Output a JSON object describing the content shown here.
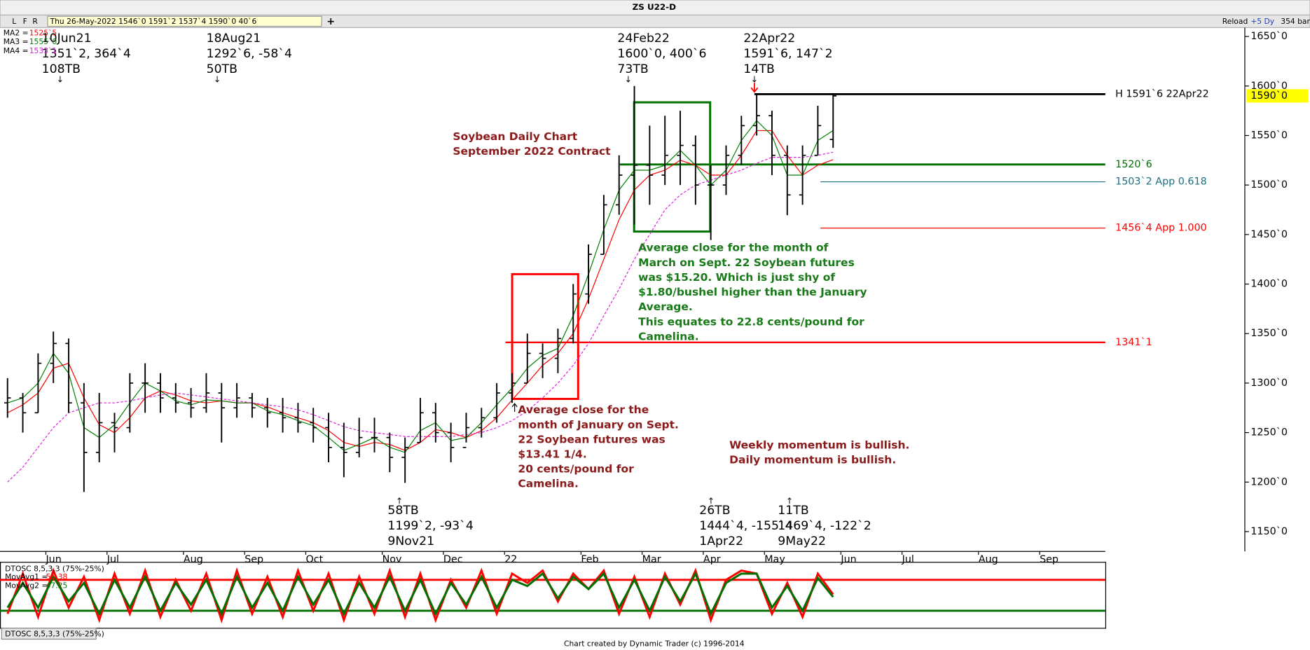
{
  "window": {
    "toolbar": {
      "letters": [
        "L",
        "F",
        "R"
      ],
      "quote": "Thu 26-May-2022   1546`0   1591`2   1537`4   1590`0   40`6",
      "add": "+",
      "buttons": [
        "Reload",
        "+5 Dy"
      ],
      "bars": "354 bars"
    },
    "footer": "Chart created by Dynamic Trader  (c) 1996-2014"
  },
  "chart_data": [
    {
      "type": "ohlc",
      "title": "ZS U22-D",
      "categories": [
        null,
        null,
        null,
        "Jun",
        null,
        null,
        null,
        "Jul",
        null,
        null,
        null,
        null,
        "Aug",
        null,
        null,
        null,
        "Sep",
        null,
        null,
        null,
        "Oct",
        null,
        null,
        null,
        null,
        "Nov",
        null,
        null,
        null,
        "Dec",
        null,
        null,
        null,
        "22",
        null,
        null,
        null,
        null,
        "Feb",
        null,
        null,
        null,
        "Mar",
        null,
        null,
        null,
        "Apr",
        null,
        null,
        null,
        "May",
        null,
        null,
        null,
        null,
        "Jun",
        null,
        null,
        null,
        "Jul",
        null,
        null,
        null,
        null,
        "Aug",
        null,
        null,
        null,
        "Sep",
        null,
        null,
        null
      ],
      "open": [
        1280,
        1285,
        1270,
        1320,
        1340,
        1280,
        1230,
        1260,
        1255,
        1300,
        1300,
        1285,
        1280,
        1275,
        1290,
        1275,
        1285,
        1275,
        1270,
        1265,
        1260,
        1255,
        1235,
        1230,
        1245,
        1245,
        1225,
        1240,
        1270,
        1250,
        1235,
        1255,
        1265,
        1290,
        1300,
        1330,
        1325,
        1345,
        1390,
        1430,
        1480,
        1510,
        1520,
        1510,
        1530,
        1540,
        1500,
        1500,
        1530,
        1560,
        1570,
        1530,
        1490,
        1530,
        1546,
        null,
        null,
        null,
        null,
        null,
        null,
        null,
        null,
        null,
        null,
        null,
        null,
        null,
        null,
        null,
        null,
        null
      ],
      "high": [
        1305,
        1290,
        1330,
        1352,
        1345,
        1300,
        1290,
        1270,
        1310,
        1320,
        1310,
        1300,
        1295,
        1310,
        1300,
        1300,
        1290,
        1285,
        1285,
        1280,
        1275,
        1270,
        1260,
        1265,
        1265,
        1250,
        1245,
        1285,
        1280,
        1260,
        1270,
        1275,
        1300,
        1310,
        1350,
        1340,
        1355,
        1400,
        1440,
        1490,
        1530,
        1600,
        1560,
        1570,
        1575,
        1550,
        1520,
        1540,
        1570,
        1591.75,
        1575,
        1540,
        1540,
        1580,
        1591.25,
        null,
        null,
        null,
        null,
        null,
        null,
        null,
        null,
        null,
        null,
        null,
        null,
        null,
        null,
        null,
        null,
        null
      ],
      "low": [
        1265,
        1250,
        1270,
        1300,
        1270,
        1190,
        1220,
        1230,
        1250,
        1270,
        1270,
        1270,
        1265,
        1270,
        1240,
        1265,
        1265,
        1255,
        1250,
        1250,
        1240,
        1220,
        1205,
        1225,
        1230,
        1210,
        1199.25,
        1240,
        1240,
        1220,
        1240,
        1245,
        1260,
        1280,
        1300,
        1305,
        1310,
        1340,
        1380,
        1430,
        1470,
        1460,
        1480,
        1500,
        1500,
        1480,
        1444.5,
        1490,
        1520,
        1550,
        1510,
        1469.5,
        1480,
        1530,
        1537.5,
        null,
        null,
        null,
        null,
        null,
        null,
        null,
        null,
        null,
        null,
        null,
        null,
        null,
        null,
        null,
        null,
        null
      ],
      "close": [
        1285,
        1270,
        1320,
        1340,
        1280,
        1230,
        1260,
        1255,
        1300,
        1300,
        1285,
        1280,
        1275,
        1290,
        1275,
        1285,
        1275,
        1270,
        1265,
        1260,
        1255,
        1235,
        1230,
        1245,
        1245,
        1225,
        1235,
        1270,
        1250,
        1235,
        1255,
        1265,
        1290,
        1300,
        1330,
        1325,
        1345,
        1390,
        1430,
        1480,
        1510,
        1520,
        1510,
        1530,
        1540,
        1500,
        1500,
        1530,
        1560,
        1570,
        1530,
        1490,
        1530,
        1560,
        1590,
        null,
        null,
        null,
        null,
        null,
        null,
        null,
        null,
        null,
        null,
        null,
        null,
        null,
        null,
        null,
        null,
        null
      ],
      "series": [
        {
          "name": "MA2 =",
          "legend_value": "1525`5",
          "color": "#ff0000",
          "dashed": false,
          "values": [
            1270,
            1278,
            1290,
            1315,
            1320,
            1285,
            1258,
            1250,
            1265,
            1285,
            1292,
            1288,
            1282,
            1280,
            1282,
            1280,
            1280,
            1276,
            1270,
            1265,
            1260,
            1252,
            1240,
            1236,
            1240,
            1238,
            1232,
            1240,
            1253,
            1250,
            1245,
            1252,
            1265,
            1283,
            1300,
            1318,
            1330,
            1350,
            1385,
            1425,
            1465,
            1495,
            1510,
            1515,
            1525,
            1520,
            1510,
            1510,
            1530,
            1555,
            1555,
            1530,
            1510,
            1520,
            1525.6,
            null,
            null,
            null,
            null,
            null,
            null,
            null,
            null,
            null,
            null,
            null,
            null,
            null,
            null,
            null,
            null,
            null
          ]
        },
        {
          "name": "MA3 =",
          "legend_value": "1555`0",
          "color": "#008000",
          "dashed": false,
          "values": [
            1280,
            1285,
            1300,
            1330,
            1310,
            1255,
            1245,
            1258,
            1280,
            1300,
            1292,
            1282,
            1278,
            1283,
            1282,
            1280,
            1280,
            1272,
            1268,
            1262,
            1257,
            1245,
            1232,
            1238,
            1245,
            1235,
            1230,
            1252,
            1260,
            1242,
            1245,
            1260,
            1278,
            1295,
            1315,
            1328,
            1335,
            1368,
            1410,
            1455,
            1495,
            1515,
            1515,
            1520,
            1535,
            1520,
            1500,
            1515,
            1545,
            1565,
            1550,
            1510,
            1510,
            1545,
            1555,
            null,
            null,
            null,
            null,
            null,
            null,
            null,
            null,
            null,
            null,
            null,
            null,
            null,
            null,
            null,
            null,
            null
          ]
        },
        {
          "name": "MA4 =",
          "legend_value": "1533`1",
          "color": "#e020e0",
          "dashed": true,
          "values": [
            1200,
            1215,
            1235,
            1255,
            1270,
            1275,
            1280,
            1280,
            1282,
            1285,
            1288,
            1290,
            1288,
            1286,
            1284,
            1282,
            1280,
            1278,
            1276,
            1273,
            1268,
            1262,
            1256,
            1252,
            1250,
            1248,
            1246,
            1246,
            1246,
            1246,
            1248,
            1250,
            1255,
            1262,
            1272,
            1285,
            1300,
            1318,
            1340,
            1368,
            1395,
            1425,
            1450,
            1475,
            1490,
            1500,
            1505,
            1510,
            1515,
            1522,
            1528,
            1528,
            1528,
            1530,
            1533.1,
            null,
            null,
            null,
            null,
            null,
            null,
            null,
            null,
            null,
            null,
            null,
            null,
            null,
            null,
            null,
            null,
            null
          ]
        }
      ],
      "ylim": [
        1130,
        1659
      ],
      "yticks": [
        {
          "value": 1650,
          "label": "1650`0"
        },
        {
          "value": 1600,
          "label": "1600`0"
        },
        {
          "value": 1550,
          "label": "1550`0"
        },
        {
          "value": 1500,
          "label": "1500`0"
        },
        {
          "value": 1450,
          "label": "1450`0"
        },
        {
          "value": 1400,
          "label": "1400`0"
        },
        {
          "value": 1350,
          "label": "1350`0"
        },
        {
          "value": 1300,
          "label": "1300`0"
        },
        {
          "value": 1250,
          "label": "1250`0"
        },
        {
          "value": 1200,
          "label": "1200`0"
        },
        {
          "value": 1150,
          "label": "1150`0"
        }
      ],
      "last_price": {
        "value": 1590,
        "label": "1590`0"
      },
      "levels": [
        {
          "value": 1591.75,
          "label": "H 1591`6 22Apr22",
          "color": "#000000"
        },
        {
          "value": 1520.75,
          "label": "1520`6",
          "color": "#007000"
        },
        {
          "value": 1503.25,
          "label": "1503`2 App 0.618",
          "color": "#1a7080"
        },
        {
          "value": 1456.5,
          "label": "1456`4 App 1.000",
          "color": "#ff0000"
        },
        {
          "value": 1341.125,
          "label": "1341`1",
          "color": "#ff0000"
        }
      ],
      "boxes": [
        {
          "top": 1583.5,
          "bottom": 1453,
          "color": "#007000"
        },
        {
          "top": 1410,
          "bottom": 1284,
          "color": "#ff0000"
        }
      ],
      "annotations": [
        {
          "lines": [
            "10Jun21",
            "1351`2, 364`4",
            "108TB"
          ]
        },
        {
          "lines": [
            "18Aug21",
            "1292`6, -58`4",
            "50TB"
          ]
        },
        {
          "lines": [
            "24Feb22",
            "1600`0, 400`6",
            "73TB"
          ]
        },
        {
          "lines": [
            "22Apr22",
            "1591`6, 147`2",
            "14TB"
          ]
        },
        {
          "lines": [
            "58TB",
            "1199`2, -93`4",
            "9Nov21"
          ]
        },
        {
          "lines": [
            "26TB",
            "1444`4, -155`4",
            "1Apr22"
          ]
        },
        {
          "lines": [
            "11TB",
            "1469`4, -122`2",
            "9May22"
          ]
        }
      ],
      "notes": [
        {
          "color": "#8b1a1a",
          "lines": [
            "Soybean Daily Chart",
            "September 2022 Contract"
          ]
        },
        {
          "color": "#1a7a1a",
          "lines": [
            "Average close for the month of",
            "March on Sept. 22 Soybean futures",
            "was $15.20. Which is just shy of",
            "$1.80/bushel higher than the January",
            "Average.",
            "This equates to 22.8 cents/pound for",
            "Camelina."
          ]
        },
        {
          "color": "#8b1a1a",
          "lines": [
            "Average close for the",
            "month of January on Sept.",
            "22 Soybean futures was",
            "$13.41 1/4.",
            "20 cents/pound for",
            "Camelina."
          ]
        },
        {
          "color": "#8b1a1a",
          "lines": [
            "Weekly momentum is bullish.",
            "Daily momentum is bullish."
          ]
        }
      ]
    },
    {
      "type": "line",
      "title": "DTOSC 8,5,3,3 (75%-25%)",
      "tab": "DTOSC 8,5,3,3 (75%-25%)",
      "series": [
        {
          "name": "MovAvg1 =",
          "legend_value": "51.38",
          "color": "#ff0000",
          "values": [
            20,
            85,
            15,
            90,
            30,
            80,
            10,
            85,
            20,
            90,
            15,
            75,
            25,
            85,
            10,
            90,
            20,
            80,
            15,
            90,
            25,
            85,
            10,
            80,
            20,
            90,
            15,
            85,
            10,
            75,
            30,
            90,
            20,
            85,
            70,
            90,
            40,
            85,
            60,
            90,
            20,
            80,
            15,
            85,
            35,
            90,
            10,
            75,
            90,
            85,
            20,
            70,
            15,
            85,
            51.38,
            null,
            null,
            null,
            null,
            null,
            null,
            null,
            null,
            null,
            null,
            null,
            null,
            null,
            null,
            null,
            null,
            null
          ]
        },
        {
          "name": "MovAvg2 =",
          "legend_value": "47.25",
          "color": "#007000",
          "values": [
            30,
            70,
            30,
            80,
            40,
            70,
            20,
            75,
            30,
            80,
            25,
            70,
            35,
            75,
            20,
            80,
            30,
            70,
            25,
            80,
            35,
            75,
            20,
            70,
            30,
            80,
            25,
            75,
            20,
            70,
            35,
            80,
            30,
            75,
            65,
            85,
            45,
            80,
            60,
            85,
            30,
            75,
            25,
            80,
            40,
            85,
            20,
            70,
            85,
            85,
            30,
            65,
            25,
            78,
            47.25,
            null,
            null,
            null,
            null,
            null,
            null,
            null,
            null,
            null,
            null,
            null,
            null,
            null,
            null,
            null,
            null,
            null
          ]
        }
      ],
      "ylim": [
        0,
        100
      ],
      "levels": [
        {
          "value": 75,
          "color": "#ff0000"
        },
        {
          "value": 25,
          "color": "#007000"
        }
      ]
    }
  ]
}
